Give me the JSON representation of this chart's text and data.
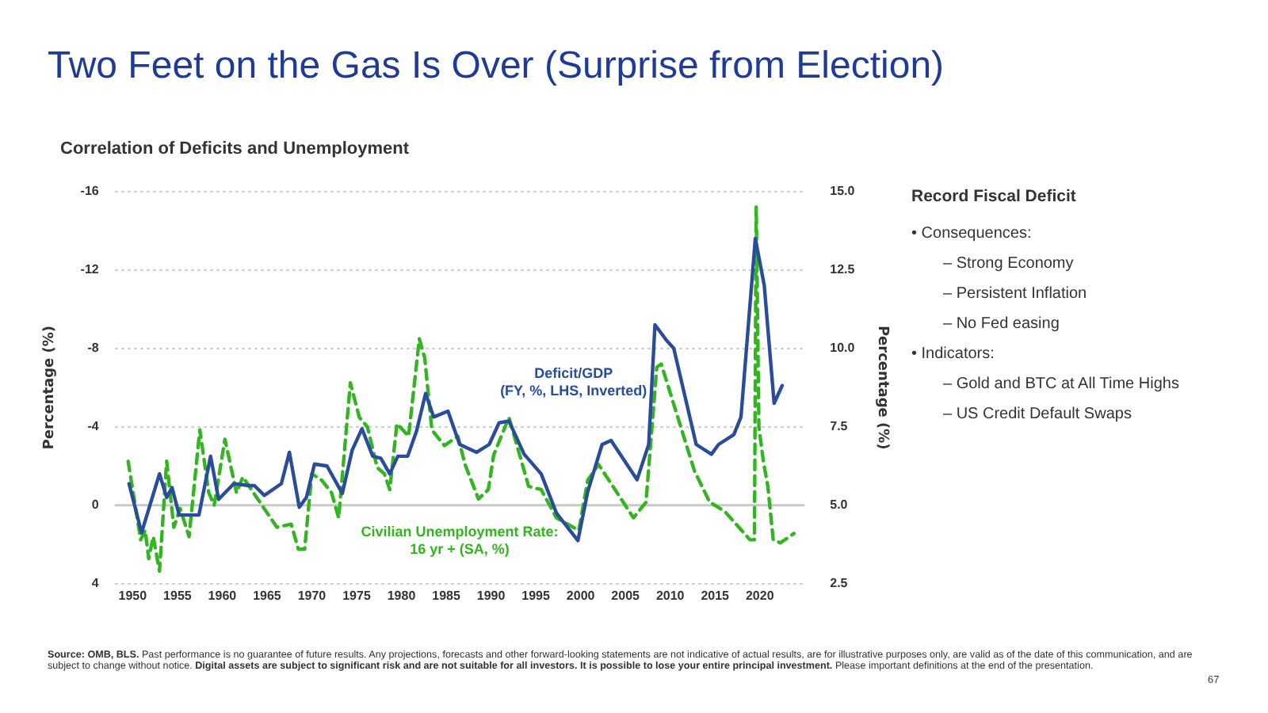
{
  "chart_data": [
    {
      "type": "line",
      "title": "Two Feet on the Gas Is Over (Surprise from Election)",
      "subtitle": "Correlation of Deficits and Unemployment",
      "ylabel": "Percentage (%)",
      "y2label": "Percentage (%)",
      "xlim": [
        1948,
        2025
      ],
      "xticks": [
        1950,
        1955,
        1960,
        1965,
        1970,
        1975,
        1980,
        1985,
        1990,
        1995,
        2000,
        2005,
        2010,
        2015,
        2020
      ],
      "ylim": [
        4,
        -16
      ],
      "yticks": [
        -16,
        -12,
        -8,
        -4,
        0,
        4
      ],
      "y2lim": [
        2.5,
        15
      ],
      "y2ticks": [
        {
          "value": 15,
          "label": "15.0"
        },
        12.5,
        {
          "value": 10,
          "label": "10.0"
        },
        7.5,
        {
          "value": 5,
          "label": "5.0"
        },
        2.5
      ],
      "grid": "y",
      "legend": false,
      "marker": "none",
      "ref_lines": [
        {
          "axis": "y",
          "value": 0,
          "color": "#c8c8c8"
        }
      ],
      "series": [
        {
          "name": "Deficit/GDP\n(FY, %, LHS, Inverted)",
          "color": "#2a4d9b",
          "line_style": "solid",
          "x": [
            1949.6,
            1951,
            1953,
            1953.8,
            1954.4,
            1955.2,
            1956.3,
            1957.4,
            1958.7,
            1959.6,
            1961.3,
            1963,
            1963.6,
            1964.7,
            1966.6,
            1967.5,
            1968.6,
            1969.4,
            1970.3,
            1971.7,
            1973.4,
            1974.5,
            1975.6,
            1976.8,
            1977.7,
            1978.7,
            1979.6,
            1980.7,
            1981.7,
            1982.7,
            1983.6,
            1985.2,
            1986.5,
            1988.4,
            1989.8,
            1990.9,
            1992,
            1993.7,
            1995.6,
            1997.3,
            1999.7,
            2000.8,
            2002.4,
            2003.4,
            2006.3,
            2007.6,
            2008.3,
            2009.6,
            2010.4,
            2012.9,
            2014.6,
            2015.4,
            2017.1,
            2017.9,
            2019.5,
            2020.5,
            2021.6,
            2022.5
          ],
          "values": [
            -1.1,
            1.4,
            -1.6,
            -0.4,
            -0.9,
            0.5,
            0.5,
            0.5,
            -2.5,
            -0.3,
            -1.1,
            -1.0,
            -1.0,
            -0.5,
            -1.1,
            -2.7,
            0.1,
            -0.4,
            -2.1,
            -2.0,
            -0.6,
            -2.8,
            -3.9,
            -2.5,
            -2.4,
            -1.6,
            -2.5,
            -2.5,
            -3.8,
            -5.7,
            -4.5,
            -4.8,
            -3.1,
            -2.7,
            -3.1,
            -4.2,
            -4.3,
            -2.6,
            -1.6,
            0.4,
            1.8,
            -0.7,
            -3.1,
            -3.3,
            -1.3,
            -3.1,
            -9.2,
            -8.4,
            -8.0,
            -3.1,
            -2.6,
            -3.1,
            -3.6,
            -4.5,
            -13.6,
            -11.2,
            -5.2,
            -6.1
          ]
        },
        {
          "name": "Civilian Unemployment Rate:\n16 yr + (SA, %)",
          "color": "#33b521",
          "line_style": "dashed",
          "axis": "y2",
          "x": [
            1949.5,
            1950.9,
            1951.4,
            1951.8,
            1952.3,
            1953,
            1953.8,
            1954.6,
            1955.3,
            1956.3,
            1957.5,
            1958.5,
            1959.1,
            1960.3,
            1961.6,
            1962.3,
            1966.1,
            1967.7,
            1968.5,
            1969.2,
            1970,
            1971.1,
            1972.2,
            1973,
            1974.3,
            1975.3,
            1976.2,
            1977.3,
            1978.1,
            1978.7,
            1979.5,
            1980.8,
            1982,
            1982.6,
            1983.4,
            1984.8,
            1986.3,
            1987.1,
            1988.6,
            1989.7,
            1990.3,
            1992,
            1994.2,
            1995.6,
            1997.3,
            1999.8,
            2000.8,
            2002,
            2005.9,
            2007.3,
            2008.5,
            2009,
            2012.7,
            2014.4,
            2016.1,
            2018.9,
            2019.4,
            2019.6,
            2019.9,
            2020.4,
            2020.9,
            2021.5,
            2022.3,
            2023.8
          ],
          "values": [
            6.4,
            3.9,
            4.2,
            3.3,
            4.0,
            2.9,
            6.4,
            4.3,
            4.9,
            4.0,
            7.4,
            5.4,
            5.0,
            7.1,
            5.4,
            5.9,
            4.3,
            4.4,
            3.6,
            3.6,
            6.0,
            5.8,
            5.4,
            4.6,
            8.9,
            7.8,
            7.5,
            6.2,
            6.0,
            5.5,
            7.6,
            7.2,
            10.3,
            9.7,
            7.4,
            6.9,
            7.2,
            6.3,
            5.2,
            5.5,
            6.6,
            7.8,
            5.6,
            5.5,
            4.6,
            4.2,
            5.8,
            6.3,
            4.6,
            5.1,
            9.4,
            9.5,
            6.1,
            5.1,
            4.8,
            3.9,
            3.9,
            14.5,
            7.5,
            6.4,
            5.6,
            3.9,
            3.8,
            4.1
          ]
        }
      ],
      "annotations": [
        "Source: OMB, BLS.",
        "Past performance is no guarantee of future results. Any projections, forecasts and other forward-looking statements are not indicative of actual results, are for illustrative purposes only, are valid as of the date of this communication, and are subject to change without notice.",
        "Digital assets are subject to significant risk and are not suitable for all investors. It is possible to lose your entire principal investment.",
        "Please important definitions at the end of the presentation.",
        "67"
      ]
    },
    {
      "type": "other",
      "title": "Record Fiscal Deficit",
      "annotations": [
        "• Consequences:",
        "– Strong Economy",
        "– Persistent Inflation",
        "– No Fed easing",
        "• Indicators:",
        "– Gold and BTC at All Time Highs",
        "– US Credit Default Swaps"
      ]
    }
  ]
}
